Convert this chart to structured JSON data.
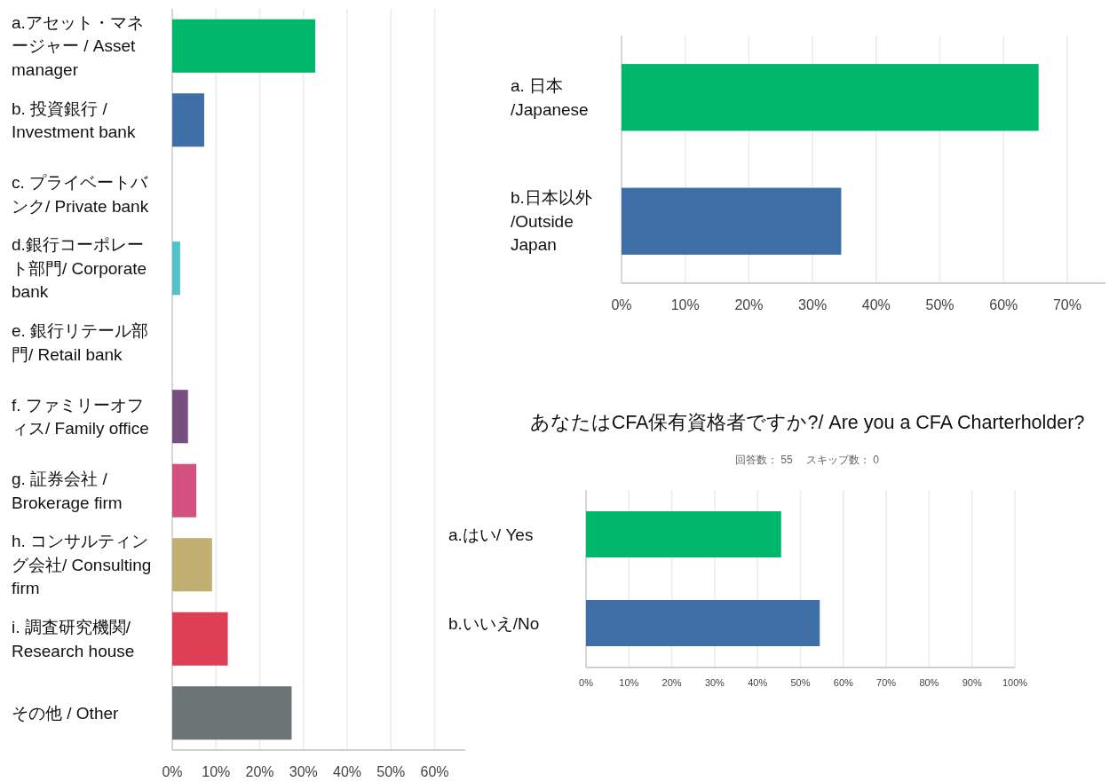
{
  "chart_data": [
    {
      "type": "bar",
      "orientation": "horizontal",
      "grid": "x",
      "categories": [
        "a.アセット・マネージャー / Asset manager",
        "b. 投資銀行 / Investment bank",
        "c. プライベートバンク/ Private bank",
        "d.銀行コーポレート部門/ Corporate bank",
        "e. 銀行リテール部門/ Retail bank",
        "f. ファミリーオフィス/ Family office",
        "g. 証券会社 / Brokerage firm",
        "h. コンサルティング会社/ Consulting firm",
        "i. 調査研究機関/ Research house",
        "その他 / Other"
      ],
      "values": [
        32.7,
        7.3,
        0,
        1.8,
        0,
        3.6,
        5.5,
        9.1,
        12.7,
        27.3
      ],
      "colors": [
        "#00b86b",
        "#3e70a7",
        null,
        "#4fc3c5",
        null,
        "#765081",
        "#d4507f",
        "#c2b073",
        "#de3f55",
        "#6b7575"
      ],
      "xlim": [
        0,
        67
      ],
      "xticks": [
        {
          "value": 0,
          "label": "0%"
        },
        {
          "value": 10,
          "label": "10%"
        },
        {
          "value": 20,
          "label": "20%"
        },
        {
          "value": 30,
          "label": "30%"
        },
        {
          "value": 40,
          "label": "40%"
        },
        {
          "value": 50,
          "label": "50%"
        },
        {
          "value": 60,
          "label": "60%"
        }
      ]
    },
    {
      "type": "bar",
      "orientation": "horizontal",
      "grid": "x",
      "categories": [
        "a. 日本 /Japanese",
        "b.日本以外 /Outside Japan"
      ],
      "values": [
        65.5,
        34.5
      ],
      "colors": [
        "#00b86b",
        "#3e70a7"
      ],
      "xlim": [
        0,
        76
      ],
      "xticks": [
        {
          "value": 0,
          "label": "0%"
        },
        {
          "value": 10,
          "label": "10%"
        },
        {
          "value": 20,
          "label": "20%"
        },
        {
          "value": 30,
          "label": "30%"
        },
        {
          "value": 40,
          "label": "40%"
        },
        {
          "value": 50,
          "label": "50%"
        },
        {
          "value": 60,
          "label": "60%"
        },
        {
          "value": 70,
          "label": "70%"
        }
      ]
    },
    {
      "type": "bar",
      "orientation": "horizontal",
      "grid": "x",
      "title": "あなたはCFA保有資格者ですか?/ Are you a CFA Charterholder?",
      "subtitle": "回答数： 55　 スキップ数： 0",
      "categories": [
        "a.はい/ Yes",
        "b.いいえ/No"
      ],
      "values": [
        45.5,
        54.5
      ],
      "colors": [
        "#00b86b",
        "#3e70a7"
      ],
      "xlim": [
        0,
        100
      ],
      "xticks": [
        {
          "value": 0,
          "label": "0%"
        },
        {
          "value": 10,
          "label": "10%"
        },
        {
          "value": 20,
          "label": "20%"
        },
        {
          "value": 30,
          "label": "30%"
        },
        {
          "value": 40,
          "label": "40%"
        },
        {
          "value": 50,
          "label": "50%"
        },
        {
          "value": 60,
          "label": "60%"
        },
        {
          "value": 70,
          "label": "70%"
        },
        {
          "value": 80,
          "label": "80%"
        },
        {
          "value": 90,
          "label": "90%"
        },
        {
          "value": 100,
          "label": "100%"
        }
      ]
    }
  ]
}
